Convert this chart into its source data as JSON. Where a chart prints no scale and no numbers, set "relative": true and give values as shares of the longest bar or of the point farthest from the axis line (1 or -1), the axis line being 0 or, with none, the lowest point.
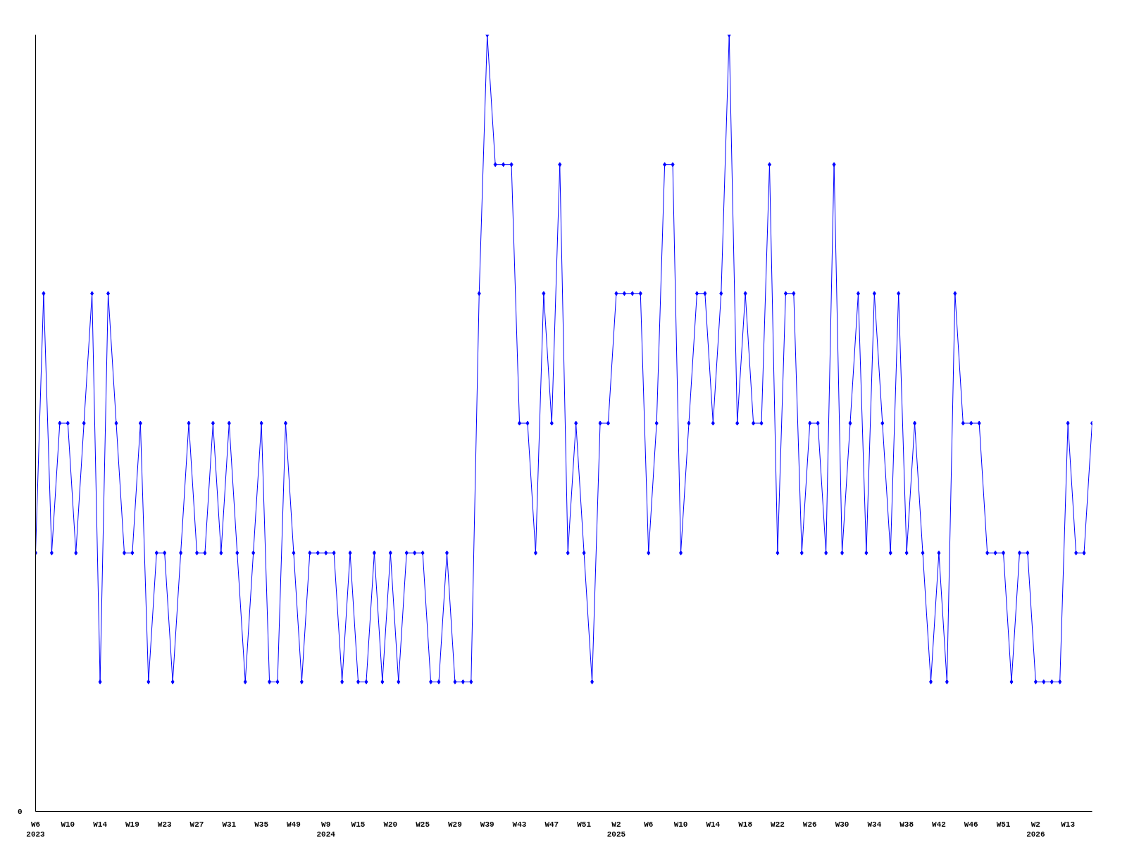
{
  "chart_data": {
    "type": "line",
    "relative": true,
    "marker": "diamond",
    "grid": false,
    "annotations": [
      "0"
    ],
    "categories": [
      "W6\n2023",
      null,
      null,
      null,
      "W10",
      null,
      null,
      null,
      "W14",
      null,
      null,
      null,
      "W19",
      null,
      null,
      null,
      "W23",
      null,
      null,
      null,
      "W27",
      null,
      null,
      null,
      "W31",
      null,
      null,
      null,
      "W35",
      null,
      null,
      null,
      "W49",
      null,
      null,
      null,
      "W9\n2024",
      null,
      null,
      null,
      "W15",
      null,
      null,
      null,
      "W20",
      null,
      null,
      null,
      "W25",
      null,
      null,
      null,
      "W29",
      null,
      null,
      null,
      "W39",
      null,
      null,
      null,
      "W43",
      null,
      null,
      null,
      "W47",
      null,
      null,
      null,
      "W51",
      null,
      null,
      null,
      "W2\n2025",
      null,
      null,
      null,
      "W6",
      null,
      null,
      null,
      "W10",
      null,
      null,
      null,
      "W14",
      null,
      null,
      null,
      "W18",
      null,
      null,
      null,
      "W22",
      null,
      null,
      null,
      "W26",
      null,
      null,
      null,
      "W30",
      null,
      null,
      null,
      "W34",
      null,
      null,
      null,
      "W38",
      null,
      null,
      null,
      "W42",
      null,
      null,
      null,
      "W46",
      null,
      null,
      null,
      "W51",
      null,
      null,
      null,
      "W2\n2026",
      null,
      null,
      null,
      "W13",
      null,
      null,
      null
    ],
    "series": [
      {
        "color": "#0000ff",
        "values": [
          0.333,
          0.667,
          0.333,
          0.5,
          0.5,
          0.333,
          0.5,
          0.667,
          0.167,
          0.667,
          0.5,
          0.333,
          0.333,
          0.5,
          0.167,
          0.333,
          0.333,
          0.167,
          0.333,
          0.5,
          0.333,
          0.333,
          0.5,
          0.333,
          0.5,
          0.333,
          0.167,
          0.333,
          0.5,
          0.167,
          0.167,
          0.5,
          0.333,
          0.167,
          0.333,
          0.333,
          0.333,
          0.333,
          0.167,
          0.333,
          0.167,
          0.167,
          0.333,
          0.167,
          0.333,
          0.167,
          0.333,
          0.333,
          0.333,
          0.167,
          0.167,
          0.333,
          0.167,
          0.167,
          0.167,
          0.667,
          1,
          0.833,
          0.833,
          0.833,
          0.5,
          0.5,
          0.333,
          0.667,
          0.5,
          0.833,
          0.333,
          0.5,
          0.333,
          0.167,
          0.5,
          0.5,
          0.667,
          0.667,
          0.667,
          0.667,
          0.333,
          0.5,
          0.833,
          0.833,
          0.333,
          0.5,
          0.667,
          0.667,
          0.5,
          0.667,
          1,
          0.5,
          0.667,
          0.5,
          0.5,
          0.833,
          0.333,
          0.667,
          0.667,
          0.333,
          0.5,
          0.5,
          0.333,
          0.833,
          0.333,
          0.5,
          0.667,
          0.333,
          0.667,
          0.5,
          0.333,
          0.667,
          0.333,
          0.5,
          0.333,
          0.167,
          0.333,
          0.167,
          0.667,
          0.5,
          0.5,
          0.5,
          0.333,
          0.333,
          0.333,
          0.167,
          0.333,
          0.333,
          0.167,
          0.167,
          0.167,
          0.167,
          0.5,
          0.333,
          0.333,
          0.5
        ]
      }
    ]
  }
}
